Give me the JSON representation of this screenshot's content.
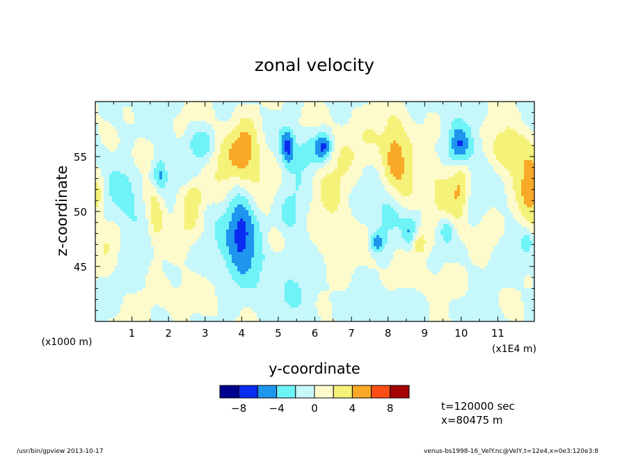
{
  "chart_data": {
    "type": "heatmap",
    "title": "zonal velocity",
    "xlabel": "y-coordinate",
    "ylabel": "z-coordinate",
    "x_unit_left": "(x1000 m)",
    "x_unit_right": "(x1E4 m)",
    "xlim": [
      0,
      12
    ],
    "ylim": [
      40,
      60
    ],
    "x_ticks": [
      "1",
      "2",
      "3",
      "4",
      "5",
      "6",
      "7",
      "8",
      "9",
      "10",
      "11"
    ],
    "y_ticks": [
      "45",
      "50",
      "55"
    ],
    "colorbar": {
      "levels": [
        -10,
        -8,
        -6,
        -4,
        -2,
        0,
        2,
        4,
        6,
        8,
        10
      ],
      "tick_labels": [
        "-8",
        "-4",
        "0",
        "4",
        "8"
      ],
      "colors": [
        "#00008f",
        "#0a2cf0",
        "#1e96ee",
        "#6ef3f7",
        "#c6f7fb",
        "#fdfbcc",
        "#f5f27a",
        "#f9a928",
        "#fc4d14",
        "#a50303"
      ]
    },
    "anomalies": [
      {
        "x": 4.1,
        "z": 55.8,
        "v": 5.2,
        "sx": 0.28,
        "sz": 2.0
      },
      {
        "x": 8.2,
        "z": 54.8,
        "v": 5.0,
        "sx": 0.25,
        "sz": 2.2
      },
      {
        "x": 10.0,
        "z": 52.5,
        "v": 4.5,
        "sx": 0.2,
        "sz": 2.6
      },
      {
        "x": 11.9,
        "z": 51.5,
        "v": 5.0,
        "sx": 0.3,
        "sz": 2.5
      },
      {
        "x": 0.05,
        "z": 51.3,
        "v": 4.0,
        "sx": 0.15,
        "sz": 1.5
      },
      {
        "x": 1.65,
        "z": 50.0,
        "v": 3.6,
        "sx": 0.15,
        "sz": 2.2
      },
      {
        "x": 2.7,
        "z": 51.5,
        "v": 3.4,
        "sx": 0.2,
        "sz": 1.0
      },
      {
        "x": 7.3,
        "z": 56.0,
        "v": 2.8,
        "sx": 0.6,
        "sz": 2.2
      },
      {
        "x": 11.3,
        "z": 55.5,
        "v": 4.0,
        "sx": 0.35,
        "sz": 1.5
      },
      {
        "x": 8.85,
        "z": 47.1,
        "v": 4.0,
        "sx": 0.15,
        "sz": 0.8
      },
      {
        "x": 6.4,
        "z": 51.0,
        "v": 2.5,
        "sx": 0.45,
        "sz": 3.0
      },
      {
        "x": 4.7,
        "z": 53.0,
        "v": 2.3,
        "sx": 0.4,
        "sz": 1.8
      },
      {
        "x": 3.5,
        "z": 53.5,
        "v": 2.2,
        "sx": 0.3,
        "sz": 2.5
      },
      {
        "x": 0.4,
        "z": 47.5,
        "v": 2.3,
        "sx": 0.25,
        "sz": 1.5
      },
      {
        "x": 2.6,
        "z": 49.0,
        "v": 2.2,
        "sx": 0.25,
        "sz": 1.5
      },
      {
        "x": 4.9,
        "z": 47.3,
        "v": 2.5,
        "sx": 0.2,
        "sz": 1.0
      },
      {
        "x": 1.2,
        "z": 55.0,
        "v": 2.2,
        "sx": 0.3,
        "sz": 1.3
      },
      {
        "x": 9.4,
        "z": 51.5,
        "v": 2.3,
        "sx": 0.3,
        "sz": 2.0
      },
      {
        "x": 8.6,
        "z": 52.0,
        "v": 2.4,
        "sx": 0.2,
        "sz": 1.5
      },
      {
        "x": 10.6,
        "z": 48.0,
        "v": 2.0,
        "sx": 0.3,
        "sz": 1.3
      },
      {
        "x": 2.0,
        "z": 42.5,
        "v": 1.6,
        "sx": 0.8,
        "sz": 1.5
      },
      {
        "x": 9.5,
        "z": 43.5,
        "v": 1.5,
        "sx": 0.6,
        "sz": 1.6
      },
      {
        "x": 6.8,
        "z": 46.0,
        "v": 1.2,
        "sx": 0.6,
        "sz": 2.5
      },
      {
        "x": 4.0,
        "z": 48.5,
        "v": -6.2,
        "sx": 0.3,
        "sz": 2.4
      },
      {
        "x": 1.75,
        "z": 53.3,
        "v": -5.6,
        "sx": 0.15,
        "sz": 1.2
      },
      {
        "x": 5.25,
        "z": 56.0,
        "v": -5.8,
        "sx": 0.13,
        "sz": 1.2
      },
      {
        "x": 6.25,
        "z": 56.0,
        "v": -5.2,
        "sx": 0.15,
        "sz": 0.9
      },
      {
        "x": 9.95,
        "z": 55.8,
        "v": -6.8,
        "sx": 0.2,
        "sz": 1.4
      },
      {
        "x": 7.7,
        "z": 47.2,
        "v": -5.2,
        "sx": 0.14,
        "sz": 0.6
      },
      {
        "x": 2.9,
        "z": 56.2,
        "v": -3.6,
        "sx": 0.25,
        "sz": 1.0
      },
      {
        "x": 5.9,
        "z": 55.5,
        "v": -3.8,
        "sx": 0.35,
        "sz": 1.2
      },
      {
        "x": 7.95,
        "z": 49.5,
        "v": -3.2,
        "sx": 0.25,
        "sz": 1.5
      },
      {
        "x": 8.6,
        "z": 48.0,
        "v": -3.5,
        "sx": 0.15,
        "sz": 1.0
      },
      {
        "x": 9.6,
        "z": 48.3,
        "v": -3.3,
        "sx": 0.15,
        "sz": 0.8
      },
      {
        "x": 11.8,
        "z": 47.2,
        "v": -3.0,
        "sx": 0.1,
        "sz": 0.7
      },
      {
        "x": 1.0,
        "z": 51.5,
        "v": -1.8,
        "sx": 0.3,
        "sz": 3.0
      },
      {
        "x": 5.3,
        "z": 50.0,
        "v": -2.0,
        "sx": 0.4,
        "sz": 3.5
      },
      {
        "x": 7.2,
        "z": 52.0,
        "v": -1.6,
        "sx": 0.4,
        "sz": 3.0
      },
      {
        "x": 10.3,
        "z": 51.0,
        "v": -2.0,
        "sx": 0.25,
        "sz": 3.5
      },
      {
        "x": 3.7,
        "z": 45.5,
        "v": -1.5,
        "sx": 0.8,
        "sz": 2.5
      },
      {
        "x": 0.6,
        "z": 53.0,
        "v": -1.3,
        "sx": 0.4,
        "sz": 3.0
      },
      {
        "x": 11.3,
        "z": 45.5,
        "v": -1.3,
        "sx": 0.5,
        "sz": 2.0
      },
      {
        "x": 8.4,
        "z": 41.5,
        "v": -1.4,
        "sx": 1.0,
        "sz": 1.2
      },
      {
        "x": 5.6,
        "z": 43.0,
        "v": -1.5,
        "sx": 0.6,
        "sz": 2.5
      },
      {
        "x": 0.8,
        "z": 43.0,
        "v": -1.3,
        "sx": 0.5,
        "sz": 1.5
      }
    ]
  },
  "annotations": {
    "time": "t=120000 sec",
    "position": "x=80475 m"
  },
  "footer": {
    "left": "/usr/bin/gpview  2013-10-17",
    "right": "venus-bs1998-16_VelY.nc@VelY,t=12e4,x=0e3:120e3:8"
  }
}
